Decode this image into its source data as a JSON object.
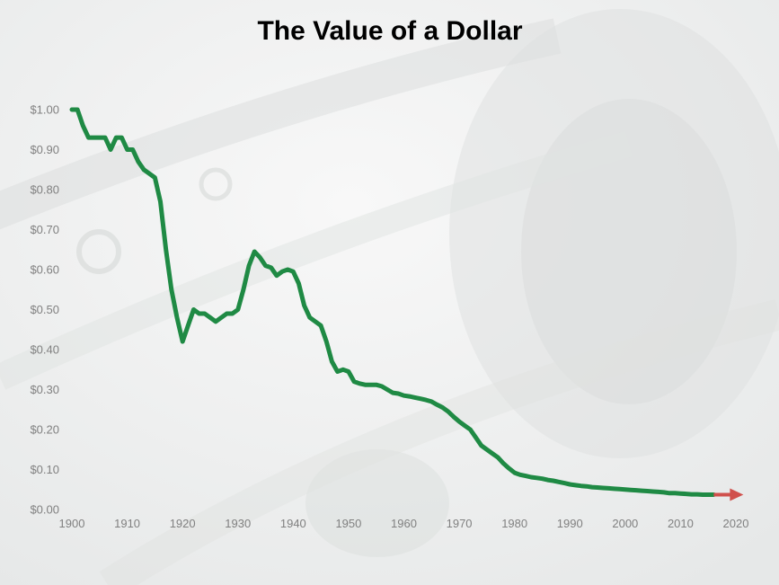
{
  "chart_data": {
    "type": "line",
    "title": "The Value of a Dollar",
    "xlabel": "",
    "ylabel": "",
    "xlim": [
      1900,
      2020
    ],
    "ylim": [
      0,
      1.0
    ],
    "x_ticks": [
      "1900",
      "1910",
      "1920",
      "1930",
      "1940",
      "1950",
      "1960",
      "1970",
      "1980",
      "1990",
      "2000",
      "2010",
      "2020"
    ],
    "y_ticks": [
      "$0.00",
      "$0.10",
      "$0.20",
      "$0.30",
      "$0.40",
      "$0.50",
      "$0.60",
      "$0.70",
      "$0.80",
      "$0.90",
      "$1.00"
    ],
    "grid": false,
    "legend": "none",
    "colors": {
      "line": "#1f8a44",
      "arrow": "#d0504c",
      "tick_text": "#808080",
      "title": "#000000"
    },
    "series": [
      {
        "x": [
          1900,
          1901,
          1902,
          1903,
          1904,
          1905,
          1906,
          1907,
          1908,
          1909,
          1910,
          1911,
          1912,
          1913,
          1914,
          1915,
          1916,
          1917,
          1918,
          1919,
          1920,
          1921,
          1922,
          1923,
          1924,
          1925,
          1926,
          1927,
          1928,
          1929,
          1930,
          1931,
          1932,
          1933,
          1934,
          1935,
          1936,
          1937,
          1938,
          1939,
          1940,
          1941,
          1942,
          1943,
          1944,
          1945,
          1946,
          1947,
          1948,
          1949,
          1950,
          1951,
          1952,
          1953,
          1954,
          1955,
          1956,
          1957,
          1958,
          1959,
          1960,
          1961,
          1962,
          1963,
          1964,
          1965,
          1966,
          1967,
          1968,
          1969,
          1970,
          1971,
          1972,
          1973,
          1974,
          1975,
          1976,
          1977,
          1978,
          1979,
          1980,
          1981,
          1982,
          1983,
          1984,
          1985,
          1986,
          1987,
          1988,
          1989,
          1990,
          1991,
          1992,
          1993,
          1994,
          1995,
          1996,
          1997,
          1998,
          1999,
          2000,
          2001,
          2002,
          2003,
          2004,
          2005,
          2006,
          2007,
          2008,
          2009,
          2010,
          2011,
          2012,
          2013,
          2014,
          2015,
          2016
        ],
        "y": [
          1.0,
          1.0,
          0.96,
          0.93,
          0.93,
          0.93,
          0.93,
          0.9,
          0.93,
          0.93,
          0.9,
          0.9,
          0.87,
          0.85,
          0.84,
          0.83,
          0.77,
          0.65,
          0.55,
          0.48,
          0.42,
          0.46,
          0.5,
          0.49,
          0.49,
          0.48,
          0.47,
          0.48,
          0.49,
          0.49,
          0.5,
          0.55,
          0.61,
          0.645,
          0.63,
          0.61,
          0.605,
          0.585,
          0.595,
          0.6,
          0.595,
          0.565,
          0.51,
          0.48,
          0.47,
          0.46,
          0.42,
          0.37,
          0.345,
          0.35,
          0.345,
          0.32,
          0.315,
          0.312,
          0.312,
          0.312,
          0.308,
          0.3,
          0.292,
          0.29,
          0.285,
          0.283,
          0.28,
          0.277,
          0.274,
          0.27,
          0.262,
          0.255,
          0.245,
          0.232,
          0.22,
          0.21,
          0.2,
          0.18,
          0.16,
          0.15,
          0.14,
          0.13,
          0.115,
          0.103,
          0.092,
          0.087,
          0.084,
          0.081,
          0.079,
          0.077,
          0.074,
          0.072,
          0.069,
          0.066,
          0.063,
          0.061,
          0.059,
          0.058,
          0.056,
          0.055,
          0.054,
          0.053,
          0.052,
          0.051,
          0.05,
          0.049,
          0.048,
          0.047,
          0.046,
          0.045,
          0.044,
          0.043,
          0.041,
          0.041,
          0.04,
          0.039,
          0.038,
          0.038,
          0.037,
          0.037,
          0.037
        ]
      }
    ]
  }
}
